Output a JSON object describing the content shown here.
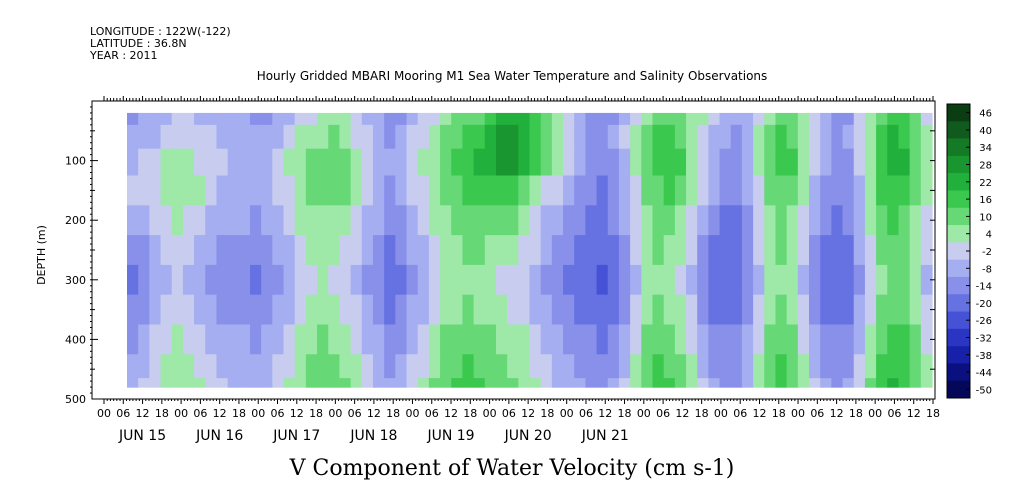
{
  "header": {
    "longitude": "LONGITUDE : 122W(-122)",
    "latitude": "LATITUDE : 36.8N",
    "year": "YEAR : 2011"
  },
  "chart_data": {
    "type": "heatmap",
    "title": "Hourly Gridded MBARI Mooring M1 Sea Water Temperature and Salinity Observations",
    "xlabel": "",
    "ylabel": "DEPTH (m)",
    "caption": "V Component of Water Velocity (cm s-1)",
    "y_ticks": [
      100,
      200,
      300,
      400,
      500
    ],
    "ylim": [
      500,
      0
    ],
    "y_reversed": true,
    "x_hour_labels": [
      "00",
      "06",
      "12",
      "18",
      "00",
      "06",
      "12",
      "18",
      "00",
      "06",
      "12",
      "18",
      "00",
      "06",
      "12",
      "18",
      "00",
      "06",
      "12",
      "18",
      "00",
      "06",
      "12",
      "18",
      "00",
      "06",
      "12",
      "18",
      "00",
      "06",
      "12",
      "18",
      "00",
      "06",
      "12",
      "18",
      "00",
      "06",
      "12",
      "18",
      "00",
      "06",
      "12",
      "18"
    ],
    "x_day_labels": [
      "JUN 15",
      "JUN 16",
      "JUN 17",
      "JUN 18",
      "JUN 19",
      "JUN 20",
      "JUN 21"
    ],
    "colorbar": {
      "labels": [
        "46",
        "40",
        "34",
        "28",
        "22",
        "16",
        "10",
        "4",
        "-2",
        "-8",
        "-14",
        "-20",
        "-26",
        "-32",
        "-38",
        "-44",
        "-50"
      ],
      "colors": [
        "#0b3d12",
        "#0f5a1c",
        "#157a26",
        "#1a9630",
        "#22b03c",
        "#3ac84e",
        "#66d876",
        "#9ee8a8",
        "#c8cdf0",
        "#a5aef0",
        "#8890ea",
        "#6672e2",
        "#4652d6",
        "#2a35c4",
        "#1620a8",
        "#0a1080",
        "#050858"
      ]
    },
    "data_extent": {
      "depth_min": 20,
      "depth_max": 480
    },
    "depth_profile": [
      20,
      60,
      100,
      150,
      200,
      250,
      300,
      350,
      400,
      450,
      480
    ],
    "v_velocity": [
      [
        -14,
        -10,
        -8,
        -6,
        -4,
        -4,
        -6,
        -6,
        -8,
        -10,
        -10,
        -12,
        -12,
        -10,
        -8,
        -4,
        -2,
        2,
        4,
        6,
        -2,
        -6,
        -10,
        -14,
        -12,
        -8,
        -4,
        0,
        4,
        8,
        10,
        12,
        16,
        20,
        24,
        22,
        16,
        10,
        4,
        -2,
        -8,
        -14,
        -16,
        -12,
        -6,
        0,
        6,
        10,
        12,
        10,
        6,
        2,
        -4,
        -8,
        -10,
        -6,
        0,
        6,
        12,
        10,
        4,
        -4,
        -10,
        -14,
        -12,
        -4,
        4,
        12,
        18,
        16,
        8,
        0
      ],
      [
        -10,
        -8,
        -6,
        -2,
        0,
        -2,
        -4,
        -4,
        -6,
        -8,
        -8,
        -10,
        -8,
        -6,
        -2,
        2,
        4,
        6,
        8,
        6,
        0,
        -4,
        -8,
        -12,
        -10,
        -4,
        0,
        4,
        8,
        12,
        16,
        18,
        22,
        26,
        28,
        24,
        18,
        12,
        6,
        0,
        -6,
        -12,
        -14,
        -10,
        -4,
        2,
        8,
        14,
        16,
        12,
        6,
        0,
        -6,
        -10,
        -12,
        -6,
        2,
        8,
        14,
        12,
        6,
        -2,
        -8,
        -12,
        -10,
        -2,
        6,
        14,
        20,
        18,
        10,
        2
      ],
      [
        -6,
        -4,
        -2,
        2,
        4,
        2,
        0,
        -2,
        -4,
        -6,
        -6,
        -8,
        -6,
        -2,
        2,
        6,
        8,
        10,
        10,
        8,
        2,
        -2,
        -6,
        -10,
        -8,
        -2,
        2,
        6,
        10,
        14,
        18,
        22,
        24,
        26,
        26,
        22,
        16,
        10,
        4,
        -2,
        -8,
        -14,
        -16,
        -12,
        -6,
        2,
        10,
        16,
        18,
        14,
        6,
        -2,
        -8,
        -12,
        -14,
        -8,
        2,
        10,
        16,
        14,
        6,
        -4,
        -10,
        -14,
        -12,
        -4,
        6,
        16,
        22,
        20,
        12,
        4
      ],
      [
        -4,
        -2,
        0,
        4,
        6,
        4,
        2,
        -2,
        -6,
        -8,
        -8,
        -10,
        -8,
        -4,
        0,
        4,
        8,
        10,
        10,
        8,
        2,
        -4,
        -8,
        -12,
        -10,
        -4,
        0,
        4,
        8,
        12,
        14,
        16,
        18,
        18,
        16,
        12,
        6,
        0,
        -4,
        -8,
        -12,
        -16,
        -18,
        -14,
        -8,
        0,
        8,
        12,
        14,
        10,
        4,
        -4,
        -10,
        -14,
        -16,
        -10,
        0,
        8,
        12,
        10,
        2,
        -6,
        -12,
        -16,
        -14,
        -6,
        4,
        14,
        18,
        16,
        10,
        2
      ],
      [
        -8,
        -6,
        -4,
        0,
        2,
        0,
        -2,
        -6,
        -8,
        -10,
        -10,
        -12,
        -10,
        -6,
        -2,
        2,
        4,
        6,
        6,
        4,
        0,
        -6,
        -10,
        -14,
        -12,
        -6,
        -2,
        2,
        6,
        8,
        10,
        12,
        12,
        10,
        8,
        4,
        0,
        -6,
        -10,
        -12,
        -16,
        -18,
        -20,
        -16,
        -10,
        -2,
        6,
        10,
        10,
        6,
        0,
        -8,
        -14,
        -18,
        -18,
        -12,
        -2,
        6,
        10,
        6,
        -2,
        -10,
        -16,
        -18,
        -16,
        -8,
        2,
        10,
        14,
        12,
        6,
        -2
      ],
      [
        -14,
        -12,
        -8,
        -4,
        -2,
        -4,
        -6,
        -10,
        -12,
        -14,
        -14,
        -16,
        -14,
        -10,
        -6,
        -2,
        2,
        4,
        2,
        0,
        -4,
        -10,
        -14,
        -18,
        -16,
        -10,
        -6,
        0,
        4,
        6,
        8,
        8,
        6,
        4,
        2,
        0,
        -4,
        -10,
        -14,
        -16,
        -18,
        -20,
        -22,
        -18,
        -12,
        -4,
        4,
        8,
        6,
        2,
        -4,
        -12,
        -18,
        -20,
        -20,
        -14,
        -4,
        4,
        8,
        4,
        -4,
        -12,
        -18,
        -20,
        -18,
        -10,
        0,
        8,
        12,
        10,
        4,
        -4
      ],
      [
        -18,
        -14,
        -10,
        -6,
        -4,
        -6,
        -8,
        -12,
        -14,
        -16,
        -16,
        -18,
        -16,
        -12,
        -8,
        -4,
        0,
        2,
        0,
        -2,
        -6,
        -12,
        -16,
        -20,
        -18,
        -12,
        -8,
        -2,
        2,
        4,
        6,
        4,
        2,
        0,
        -2,
        -4,
        -8,
        -12,
        -16,
        -18,
        -20,
        -22,
        -24,
        -20,
        -14,
        -6,
        2,
        6,
        4,
        0,
        -6,
        -14,
        -20,
        -22,
        -22,
        -16,
        -6,
        2,
        6,
        2,
        -6,
        -14,
        -20,
        -22,
        -20,
        -12,
        -2,
        6,
        10,
        8,
        2,
        -6
      ],
      [
        -16,
        -12,
        -8,
        -4,
        -2,
        -4,
        -6,
        -10,
        -12,
        -14,
        -14,
        -16,
        -14,
        -10,
        -6,
        -2,
        2,
        4,
        2,
        0,
        -4,
        -10,
        -14,
        -18,
        -16,
        -10,
        -6,
        0,
        4,
        6,
        8,
        6,
        4,
        2,
        0,
        -2,
        -6,
        -10,
        -14,
        -16,
        -18,
        -20,
        -22,
        -18,
        -12,
        -4,
        4,
        8,
        6,
        2,
        -4,
        -12,
        -18,
        -20,
        -20,
        -14,
        -4,
        4,
        8,
        4,
        -4,
        -12,
        -18,
        -20,
        -18,
        -10,
        0,
        8,
        12,
        10,
        4,
        -4
      ],
      [
        -12,
        -8,
        -4,
        0,
        2,
        0,
        -2,
        -6,
        -8,
        -10,
        -10,
        -12,
        -10,
        -6,
        -2,
        2,
        6,
        8,
        6,
        4,
        0,
        -6,
        -10,
        -14,
        -12,
        -6,
        -2,
        4,
        8,
        10,
        12,
        10,
        8,
        6,
        4,
        2,
        -2,
        -6,
        -10,
        -12,
        -14,
        -16,
        -18,
        -14,
        -8,
        0,
        8,
        12,
        10,
        6,
        0,
        -8,
        -14,
        -16,
        -16,
        -10,
        0,
        8,
        12,
        8,
        0,
        -8,
        -14,
        -16,
        -14,
        -6,
        4,
        12,
        16,
        14,
        8,
        0
      ],
      [
        -10,
        -6,
        -2,
        2,
        4,
        2,
        0,
        -4,
        -6,
        -8,
        -8,
        -10,
        -8,
        -4,
        0,
        4,
        8,
        10,
        8,
        6,
        2,
        -4,
        -8,
        -12,
        -10,
        -4,
        0,
        6,
        10,
        12,
        14,
        12,
        10,
        8,
        6,
        4,
        0,
        -4,
        -8,
        -10,
        -12,
        -14,
        -16,
        -12,
        -6,
        2,
        10,
        14,
        12,
        8,
        2,
        -6,
        -12,
        -14,
        -14,
        -8,
        2,
        10,
        14,
        10,
        2,
        -6,
        -12,
        -14,
        -12,
        -4,
        6,
        14,
        18,
        16,
        10,
        2
      ],
      [
        -8,
        -4,
        0,
        4,
        6,
        4,
        2,
        -2,
        -4,
        -6,
        -6,
        -8,
        -6,
        -2,
        2,
        6,
        10,
        12,
        10,
        8,
        4,
        -2,
        -6,
        -10,
        -8,
        -2,
        2,
        8,
        12,
        14,
        16,
        14,
        12,
        10,
        8,
        6,
        2,
        -2,
        -6,
        -8,
        -10,
        -12,
        -14,
        -10,
        -4,
        4,
        12,
        16,
        14,
        10,
        4,
        -4,
        -10,
        -12,
        -12,
        -6,
        4,
        12,
        16,
        12,
        4,
        -4,
        -10,
        -12,
        -10,
        -2,
        8,
        16,
        20,
        18,
        12,
        4
      ]
    ]
  }
}
